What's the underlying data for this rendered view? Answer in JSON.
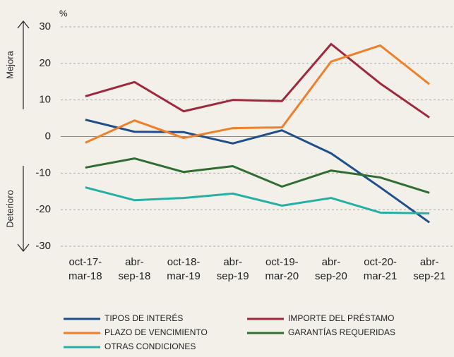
{
  "chart_data": {
    "type": "line",
    "y_unit": "%",
    "annotations": [
      "Mejora",
      "Deterioro"
    ],
    "categories": [
      "oct-17-\nmar-18",
      "abr-\nsep-18",
      "oct-18-\nmar-19",
      "abr-\nsep-19",
      "oct-19-\nmar-20",
      "abr-\nsep-20",
      "oct-20-\nmar-21",
      "abr-\nsep-21"
    ],
    "series": [
      {
        "name": "TIPOS DE INTERÉS",
        "color": "#1f4e8c",
        "values": [
          4.6,
          1.3,
          1.2,
          -1.9,
          1.7,
          -4.6,
          -13.9,
          -23.5
        ]
      },
      {
        "name": "IMPORTE DEL PRÉSTAMO",
        "color": "#a0283c",
        "values": [
          11,
          14.9,
          6.9,
          10,
          9.7,
          25.3,
          14.5,
          5.2
        ]
      },
      {
        "name": "PLAZO DE VENCIMIENTO",
        "color": "#f07f2a",
        "values": [
          -1.7,
          4.4,
          -0.4,
          2.3,
          2.5,
          20.5,
          24.9,
          14.3
        ]
      },
      {
        "name": "GARANTÍAS REQUERIDAS",
        "color": "#2e6e30",
        "values": [
          -8.5,
          -6,
          -9.7,
          -8.1,
          -13.7,
          -9.3,
          -11.2,
          -15.4
        ]
      },
      {
        "name": "OTRAS CONDICIONES",
        "color": "#26b0a5",
        "values": [
          -13.9,
          -17.4,
          -16.8,
          -15.6,
          -18.9,
          -16.8,
          -20.8,
          -21
        ]
      }
    ],
    "ylim": [
      -30,
      30
    ],
    "yticks": [
      30,
      20,
      10,
      0,
      -10,
      -20,
      -30
    ],
    "grid": true
  }
}
